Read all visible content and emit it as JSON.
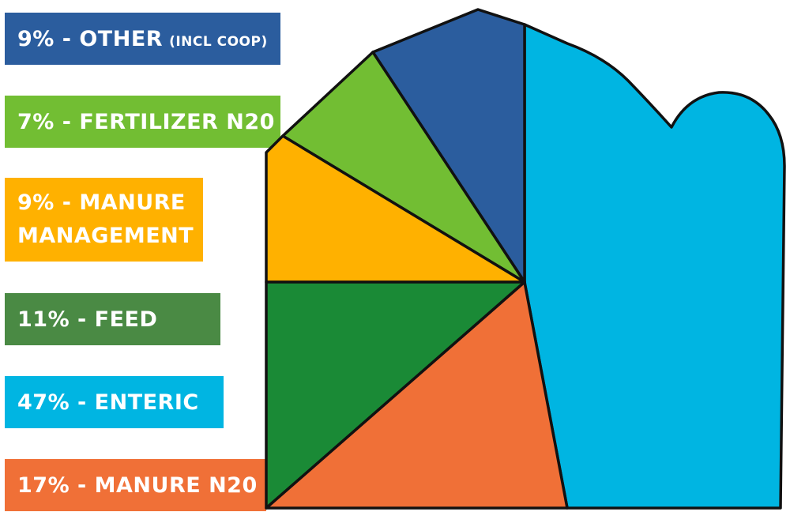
{
  "chart_data": {
    "type": "pie",
    "title": "",
    "slices": [
      {
        "percent_label": "9%",
        "sep": " - ",
        "name": "OTHER",
        "note": "(INCL COOP)",
        "value": 9,
        "color": "#2b5d9e"
      },
      {
        "percent_label": "7%",
        "sep": " - ",
        "name": "FERTILIZER N20",
        "value": 7,
        "color": "#72be33"
      },
      {
        "percent_label": "9%",
        "sep": " - ",
        "name": "MANURE",
        "name_line2": "MANAGEMENT",
        "value": 9,
        "color": "#ffb100"
      },
      {
        "percent_label": "11%",
        "sep": " - ",
        "name": "FEED",
        "value": 11,
        "color": "#1a8a36"
      },
      {
        "percent_label": "47%",
        "sep": " - ",
        "name": "ENTERIC",
        "value": 47,
        "color": "#00b5e2"
      },
      {
        "percent_label": "17%",
        "sep": " - ",
        "name": "MANURE N20",
        "value": 17,
        "color": "#f07037"
      }
    ],
    "legend_position": "left",
    "label_box_colors": {
      "other": "#2b5d9e",
      "fertilizer": "#72be33",
      "manure_management": "#ffb100",
      "feed": "#4a8a44",
      "enteric": "#00b5e2",
      "manure_n20": "#f07037"
    }
  }
}
